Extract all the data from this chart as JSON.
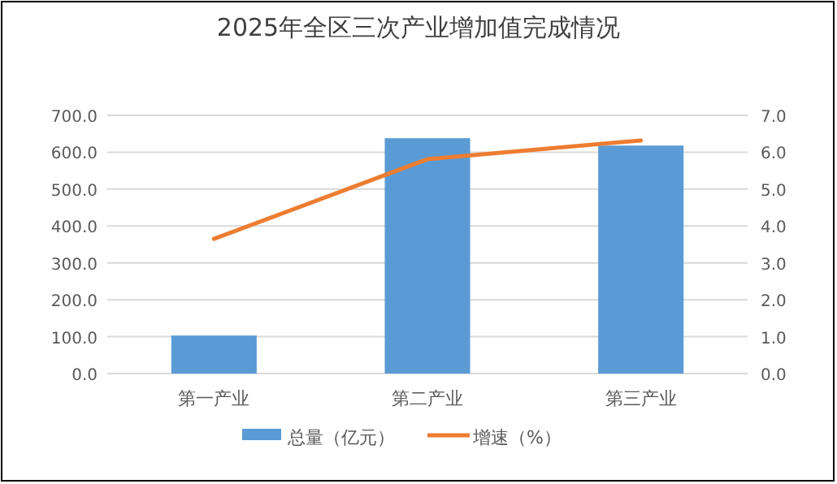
{
  "chart_data": {
    "type": "bar",
    "title": "2025年全区三次产业增加值完成情况",
    "categories": [
      "第一产业",
      "第二产业",
      "第三产业"
    ],
    "series": [
      {
        "name": "总量（亿元）",
        "color": "#5b9bd5",
        "values": [
          103,
          638,
          618
        ]
      },
      {
        "name": "增速（%）",
        "type": "line",
        "axis": "y2",
        "color": "#ed7d31",
        "values": [
          3.65,
          5.81,
          6.32
        ]
      }
    ],
    "ylim": [
      0,
      700
    ],
    "yticks": [
      {
        "value": 0,
        "label": "0.0"
      },
      {
        "value": 100,
        "label": "100.0"
      },
      {
        "value": 200,
        "label": "200.0"
      },
      {
        "value": 300,
        "label": "300.0"
      },
      {
        "value": 400,
        "label": "400.0"
      },
      {
        "value": 500,
        "label": "500.0"
      },
      {
        "value": 600,
        "label": "600.0"
      },
      {
        "value": 700,
        "label": "700.0"
      }
    ],
    "y2lim": [
      0,
      7
    ],
    "y2ticks": [
      {
        "value": 0,
        "label": "0.0"
      },
      {
        "value": 1,
        "label": "1.0"
      },
      {
        "value": 2,
        "label": "2.0"
      },
      {
        "value": 3,
        "label": "3.0"
      },
      {
        "value": 4,
        "label": "4.0"
      },
      {
        "value": 5,
        "label": "5.0"
      },
      {
        "value": 6,
        "label": "6.0"
      },
      {
        "value": 7,
        "label": "7.0"
      }
    ],
    "grid": "y",
    "legend": "bottom"
  }
}
